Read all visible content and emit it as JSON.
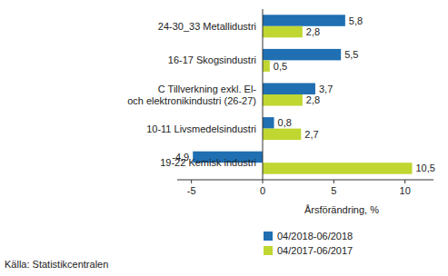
{
  "chart_data": {
    "type": "bar",
    "orientation": "horizontal",
    "categories": [
      "24-30_33 Metallidustri",
      "16-17 Skogsindustri",
      "C Tillverkning exkl. El-\noch elektronikindustri (26-27)",
      "10-11 Livsmedelsindustri",
      "19-22 Kemisk industri"
    ],
    "series": [
      {
        "name": "04/2018-06/2018",
        "color": "#1f6fb2",
        "values": [
          5.8,
          5.5,
          3.7,
          0.8,
          -4.9
        ],
        "value_labels": [
          "5,8",
          "5,5",
          "3,7",
          "0,8",
          "-4,9"
        ]
      },
      {
        "name": "04/2017-06/2017",
        "color": "#c0d631",
        "values": [
          2.8,
          0.5,
          2.8,
          2.7,
          10.5
        ],
        "value_labels": [
          "2,8",
          "0,5",
          "2,8",
          "2,7",
          "10,5"
        ]
      }
    ],
    "x_label": "Årsförändring, %",
    "xlim": [
      -6,
      12
    ],
    "xticks": [
      -5,
      0,
      5,
      10
    ],
    "grid": false,
    "data_labels": true,
    "legend": "bottom",
    "source": "Källa: Statistikcentralen"
  }
}
